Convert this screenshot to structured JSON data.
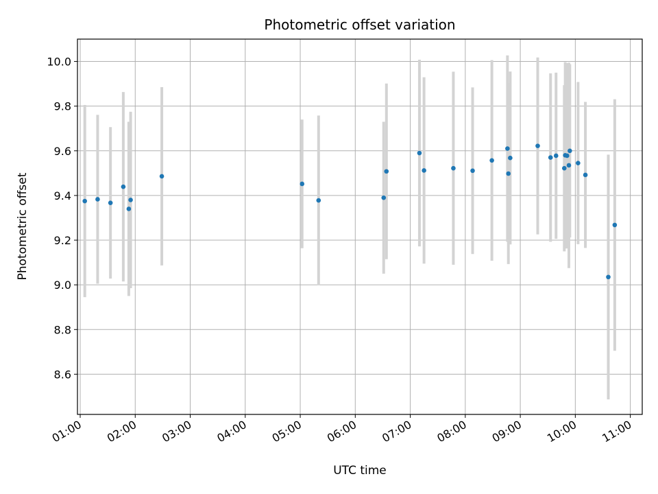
{
  "chart_data": {
    "type": "scatter",
    "title": "Photometric offset variation",
    "xlabel": "UTC time",
    "ylabel": "Photometric offset",
    "grid": true,
    "xlim": [
      "00:57",
      "11:13"
    ],
    "ylim": [
      8.42,
      10.1
    ],
    "x_ticks": [
      "01:00",
      "02:00",
      "03:00",
      "04:00",
      "05:00",
      "06:00",
      "07:00",
      "08:00",
      "09:00",
      "10:00",
      "11:00"
    ],
    "y_ticks": [
      "8.6",
      "8.8",
      "9.0",
      "9.2",
      "9.4",
      "9.6",
      "9.8",
      "10.0"
    ],
    "colors": {
      "points": "#1f77b4",
      "error_bars": "#d3d3d3",
      "grid": "#b0b0b0"
    },
    "points": [
      {
        "x": "01:05",
        "y": 9.375,
        "low": 8.945,
        "high": 9.805
      },
      {
        "x": "01:19",
        "y": 9.383,
        "low": 9.005,
        "high": 9.761
      },
      {
        "x": "01:33",
        "y": 9.367,
        "low": 9.028,
        "high": 9.706
      },
      {
        "x": "01:47",
        "y": 9.439,
        "low": 9.015,
        "high": 9.863
      },
      {
        "x": "01:53",
        "y": 9.34,
        "low": 8.95,
        "high": 9.73
      },
      {
        "x": "01:55",
        "y": 9.38,
        "low": 8.985,
        "high": 9.775
      },
      {
        "x": "02:29",
        "y": 9.486,
        "low": 9.087,
        "high": 9.885
      },
      {
        "x": "05:02",
        "y": 9.452,
        "low": 9.164,
        "high": 9.74
      },
      {
        "x": "05:20",
        "y": 9.378,
        "low": 8.998,
        "high": 9.758
      },
      {
        "x": "06:31",
        "y": 9.39,
        "low": 9.05,
        "high": 9.73
      },
      {
        "x": "06:34",
        "y": 9.508,
        "low": 9.115,
        "high": 9.901
      },
      {
        "x": "07:10",
        "y": 9.59,
        "low": 9.172,
        "high": 10.008
      },
      {
        "x": "07:15",
        "y": 9.512,
        "low": 9.095,
        "high": 9.929
      },
      {
        "x": "07:47",
        "y": 9.522,
        "low": 9.09,
        "high": 9.954
      },
      {
        "x": "08:08",
        "y": 9.511,
        "low": 9.138,
        "high": 9.884
      },
      {
        "x": "08:29",
        "y": 9.557,
        "low": 9.108,
        "high": 10.006
      },
      {
        "x": "08:46",
        "y": 9.61,
        "low": 9.193,
        "high": 10.027
      },
      {
        "x": "08:47",
        "y": 9.498,
        "low": 9.093,
        "high": 9.903
      },
      {
        "x": "08:49",
        "y": 9.568,
        "low": 9.181,
        "high": 9.955
      },
      {
        "x": "09:19",
        "y": 9.622,
        "low": 9.226,
        "high": 10.018
      },
      {
        "x": "09:33",
        "y": 9.57,
        "low": 9.193,
        "high": 9.947
      },
      {
        "x": "09:39",
        "y": 9.578,
        "low": 9.206,
        "high": 9.95
      },
      {
        "x": "09:48",
        "y": 9.522,
        "low": 9.15,
        "high": 9.894
      },
      {
        "x": "09:49",
        "y": 9.58,
        "low": 9.163,
        "high": 9.997
      },
      {
        "x": "09:51",
        "y": 9.578,
        "low": 9.163,
        "high": 9.993
      },
      {
        "x": "09:53",
        "y": 9.535,
        "low": 9.075,
        "high": 9.995
      },
      {
        "x": "09:54",
        "y": 9.6,
        "low": 9.212,
        "high": 9.988
      },
      {
        "x": "10:03",
        "y": 9.545,
        "low": 9.182,
        "high": 9.908
      },
      {
        "x": "10:11",
        "y": 9.492,
        "low": 9.165,
        "high": 9.819
      },
      {
        "x": "10:36",
        "y": 9.035,
        "low": 8.487,
        "high": 9.583
      },
      {
        "x": "10:43",
        "y": 9.268,
        "low": 8.705,
        "high": 9.831
      }
    ]
  }
}
